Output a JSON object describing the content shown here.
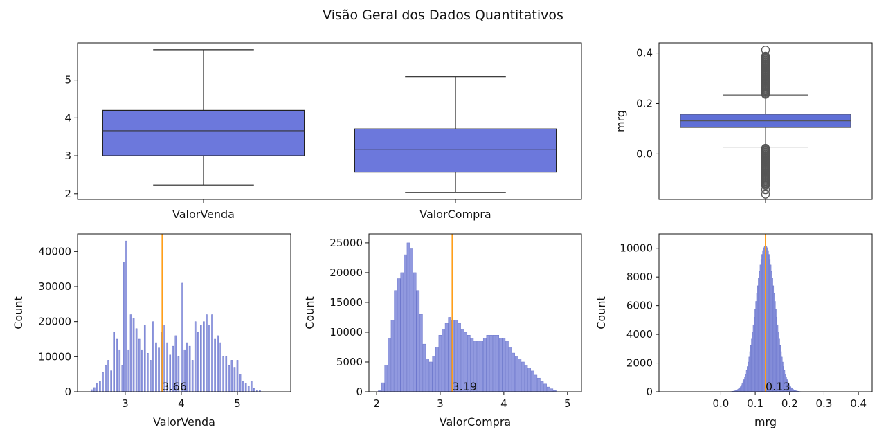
{
  "figure": {
    "title": "Visão Geral dos Dados Quantitativos"
  },
  "colors": {
    "box_fill": "#6c78dc",
    "box_fill_gray": "#5f6fd6",
    "hist_fill": "#8b94dd",
    "hist_edge": "#6b76cc",
    "mean_line": "#ff9f1a",
    "edge": "#222222"
  },
  "chart_data": [
    {
      "type": "boxplot",
      "categories": [
        "ValorVenda",
        "ValorCompra"
      ],
      "boxes": [
        {
          "name": "ValorVenda",
          "whisker_low": 2.23,
          "q1": 3.0,
          "median": 3.66,
          "q3": 4.2,
          "whisker_high": 5.8
        },
        {
          "name": "ValorCompra",
          "whisker_low": 2.03,
          "q1": 2.57,
          "median": 3.16,
          "q3": 3.71,
          "whisker_high": 5.09
        }
      ],
      "ylim": [
        1.85,
        5.98
      ],
      "yticks": [
        2,
        3,
        4,
        5
      ],
      "ylabel": "",
      "xlabel": ""
    },
    {
      "type": "boxplot",
      "categories": [
        ""
      ],
      "boxes": [
        {
          "name": "mrg",
          "whisker_low": 0.027,
          "q1": 0.105,
          "median": 0.131,
          "q3": 0.158,
          "whisker_high": 0.234,
          "outliers_high_range": [
            0.236,
            0.392
          ],
          "outliers_low_range": [
            -0.125,
            0.025
          ],
          "outliers_extra": [
            0.412,
            -0.142,
            -0.16
          ]
        }
      ],
      "ylim": [
        -0.18,
        0.44
      ],
      "yticks": [
        0.0,
        0.2,
        0.4
      ],
      "ylabel": "mrg",
      "xlabel": ""
    },
    {
      "type": "histogram",
      "xlabel": "ValorVenda",
      "ylabel": "Count",
      "xlim": [
        2.15,
        5.95
      ],
      "ylim": [
        0,
        45000
      ],
      "xticks": [
        3,
        4,
        5
      ],
      "yticks": [
        0,
        10000,
        20000,
        30000,
        40000
      ],
      "mean": 3.66,
      "mean_label": "3.66",
      "bins": [
        [
          2.4,
          600
        ],
        [
          2.45,
          1200
        ],
        [
          2.5,
          2500
        ],
        [
          2.55,
          3000
        ],
        [
          2.6,
          5500
        ],
        [
          2.65,
          7500
        ],
        [
          2.7,
          9000
        ],
        [
          2.75,
          6000
        ],
        [
          2.8,
          17000
        ],
        [
          2.85,
          15000
        ],
        [
          2.9,
          12000
        ],
        [
          2.95,
          7500
        ],
        [
          2.98,
          37000
        ],
        [
          3.02,
          43000
        ],
        [
          3.06,
          12000
        ],
        [
          3.1,
          22000
        ],
        [
          3.15,
          21000
        ],
        [
          3.2,
          18000
        ],
        [
          3.25,
          15000
        ],
        [
          3.3,
          12000
        ],
        [
          3.35,
          19000
        ],
        [
          3.4,
          11000
        ],
        [
          3.45,
          9000
        ],
        [
          3.5,
          20000
        ],
        [
          3.55,
          14000
        ],
        [
          3.6,
          12500
        ],
        [
          3.66,
          17000
        ],
        [
          3.7,
          19000
        ],
        [
          3.75,
          14000
        ],
        [
          3.8,
          10500
        ],
        [
          3.85,
          13000
        ],
        [
          3.9,
          16000
        ],
        [
          3.95,
          10000
        ],
        [
          4.02,
          31000
        ],
        [
          4.06,
          12000
        ],
        [
          4.1,
          14000
        ],
        [
          4.15,
          13000
        ],
        [
          4.2,
          9000
        ],
        [
          4.25,
          20000
        ],
        [
          4.3,
          17000
        ],
        [
          4.35,
          19000
        ],
        [
          4.4,
          20000
        ],
        [
          4.45,
          22000
        ],
        [
          4.5,
          19000
        ],
        [
          4.55,
          22000
        ],
        [
          4.6,
          15000
        ],
        [
          4.65,
          16000
        ],
        [
          4.7,
          14000
        ],
        [
          4.75,
          10000
        ],
        [
          4.8,
          10000
        ],
        [
          4.85,
          7500
        ],
        [
          4.9,
          9000
        ],
        [
          4.95,
          7000
        ],
        [
          5.0,
          9000
        ],
        [
          5.05,
          5000
        ],
        [
          5.1,
          3000
        ],
        [
          5.15,
          2500
        ],
        [
          5.2,
          1600
        ],
        [
          5.25,
          3000
        ],
        [
          5.3,
          1000
        ],
        [
          5.35,
          500
        ],
        [
          5.4,
          400
        ]
      ]
    },
    {
      "type": "histogram",
      "xlabel": "ValorCompra",
      "ylabel": "Count",
      "xlim": [
        1.88,
        5.22
      ],
      "ylim": [
        0,
        26500
      ],
      "xticks": [
        2,
        3,
        4,
        5
      ],
      "yticks": [
        0,
        5000,
        10000,
        15000,
        20000,
        25000
      ],
      "mean": 3.19,
      "mean_label": "3.19",
      "bins": [
        [
          2.05,
          300
        ],
        [
          2.1,
          1500
        ],
        [
          2.15,
          4500
        ],
        [
          2.2,
          9000
        ],
        [
          2.25,
          12000
        ],
        [
          2.3,
          17000
        ],
        [
          2.35,
          19000
        ],
        [
          2.4,
          20000
        ],
        [
          2.45,
          23000
        ],
        [
          2.5,
          25000
        ],
        [
          2.55,
          24000
        ],
        [
          2.6,
          20000
        ],
        [
          2.65,
          17000
        ],
        [
          2.7,
          13000
        ],
        [
          2.75,
          8000
        ],
        [
          2.8,
          5500
        ],
        [
          2.85,
          5000
        ],
        [
          2.9,
          6000
        ],
        [
          2.95,
          7500
        ],
        [
          3.0,
          9500
        ],
        [
          3.05,
          10500
        ],
        [
          3.1,
          11500
        ],
        [
          3.15,
          12500
        ],
        [
          3.2,
          12000
        ],
        [
          3.25,
          12000
        ],
        [
          3.3,
          11500
        ],
        [
          3.35,
          10500
        ],
        [
          3.4,
          10000
        ],
        [
          3.45,
          9500
        ],
        [
          3.5,
          9000
        ],
        [
          3.55,
          8500
        ],
        [
          3.6,
          8500
        ],
        [
          3.65,
          8500
        ],
        [
          3.7,
          9000
        ],
        [
          3.75,
          9500
        ],
        [
          3.8,
          9500
        ],
        [
          3.85,
          9500
        ],
        [
          3.9,
          9500
        ],
        [
          3.95,
          9000
        ],
        [
          4.0,
          9000
        ],
        [
          4.05,
          8500
        ],
        [
          4.1,
          7500
        ],
        [
          4.15,
          6500
        ],
        [
          4.2,
          6000
        ],
        [
          4.25,
          5500
        ],
        [
          4.3,
          5000
        ],
        [
          4.35,
          4500
        ],
        [
          4.4,
          4000
        ],
        [
          4.45,
          3500
        ],
        [
          4.5,
          2800
        ],
        [
          4.55,
          2300
        ],
        [
          4.6,
          1700
        ],
        [
          4.65,
          1300
        ],
        [
          4.7,
          800
        ],
        [
          4.75,
          500
        ],
        [
          4.8,
          200
        ]
      ]
    },
    {
      "type": "histogram",
      "xlabel": "mrg",
      "ylabel": "Count",
      "xlim": [
        -0.18,
        0.44
      ],
      "ylim": [
        0,
        11000
      ],
      "xticks": [
        0.0,
        0.1,
        0.2,
        0.3,
        0.4
      ],
      "yticks": [
        0,
        2000,
        4000,
        6000,
        8000,
        10000
      ],
      "mean": 0.13,
      "mean_label": "0.13",
      "distribution": {
        "mu": 0.13,
        "sigma": 0.028,
        "peak": 10200,
        "min_x": -0.02,
        "max_x": 0.3,
        "bin_width": 0.0025
      }
    }
  ]
}
